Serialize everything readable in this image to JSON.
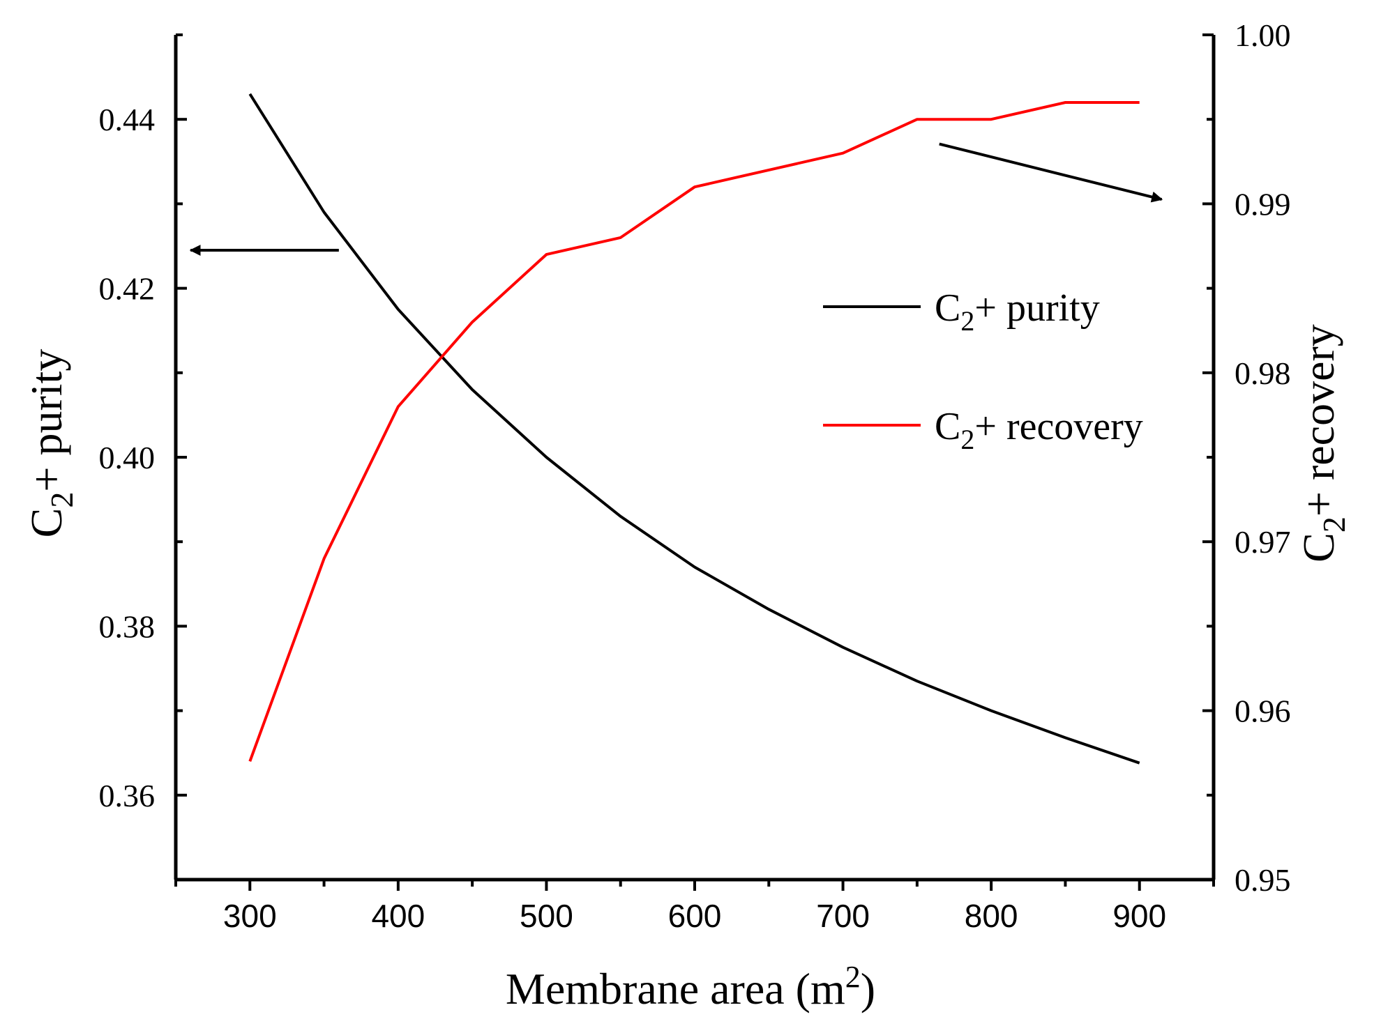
{
  "chart_data": {
    "type": "line",
    "x": [
      300,
      350,
      400,
      450,
      500,
      550,
      600,
      650,
      700,
      750,
      800,
      850,
      900
    ],
    "series": [
      {
        "name": "C2+ purity",
        "axis": "left",
        "color": "#000000",
        "values": [
          0.443,
          0.429,
          0.4175,
          0.408,
          0.4,
          0.393,
          0.387,
          0.382,
          0.3775,
          0.3735,
          0.37,
          0.3668,
          0.3638
        ]
      },
      {
        "name": "C2+ recovery",
        "axis": "right",
        "color": "#ff0000",
        "values": [
          0.957,
          0.969,
          0.978,
          0.983,
          0.987,
          0.988,
          0.991,
          0.992,
          0.993,
          0.995,
          0.995,
          0.996,
          0.996
        ]
      }
    ],
    "xlim": [
      250,
      950
    ],
    "ylim_left": [
      0.35,
      0.45
    ],
    "ylim_right": [
      0.95,
      1.0
    ],
    "x_ticks": [
      "300",
      "400",
      "500",
      "600",
      "700",
      "800",
      "900"
    ],
    "y_left_ticks": [
      "0.36",
      "0.38",
      "0.40",
      "0.42",
      "0.44"
    ],
    "y_right_ticks": [
      "0.95",
      "0.96",
      "0.97",
      "0.98",
      "0.99",
      "1.00"
    ],
    "xlabel": {
      "main": "Membrane area (m",
      "sup": "2",
      "end": ")"
    },
    "ylabel_left": {
      "pre": "C",
      "sub": "2",
      "post": "+ purity"
    },
    "ylabel_right": {
      "pre": "C",
      "sub": "2",
      "post": "+ recovery"
    },
    "legend": [
      {
        "pre": "C",
        "sub": "2",
        "post": "+ purity",
        "color": "#000000"
      },
      {
        "pre": "C",
        "sub": "2",
        "post": "+ recovery",
        "color": "#ff0000"
      }
    ],
    "legend_position": "center-right",
    "annotations": [
      {
        "type": "arrow",
        "points_to": "left axis",
        "from_x": 360,
        "from_y": 0.4245,
        "to_x": 260,
        "to_y": 0.4245
      },
      {
        "type": "arrow",
        "points_to": "right axis",
        "from_x": 765,
        "from_y": 0.99354,
        "to_x": 915,
        "to_y": 0.99026
      }
    ]
  }
}
